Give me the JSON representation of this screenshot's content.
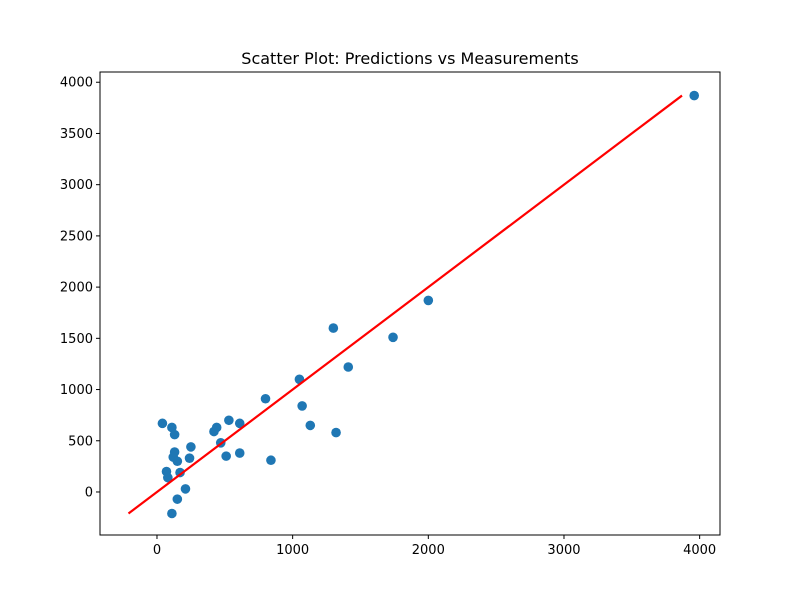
{
  "chart_data": {
    "type": "scatter",
    "title": "Scatter Plot: Predictions vs Measurements",
    "xlabel": "",
    "ylabel": "",
    "xlim": [
      -420,
      4150
    ],
    "ylim": [
      -420,
      4100
    ],
    "xticks": [
      0,
      1000,
      2000,
      3000,
      4000
    ],
    "yticks": [
      0,
      500,
      1000,
      1500,
      2000,
      2500,
      3000,
      3500,
      4000
    ],
    "grid": false,
    "legend": "none",
    "colors": {
      "points": "#1f77b4",
      "fit_line": "#ff0000"
    },
    "points": [
      {
        "x": 40,
        "y": 670
      },
      {
        "x": 70,
        "y": 200
      },
      {
        "x": 80,
        "y": 140
      },
      {
        "x": 110,
        "y": 630
      },
      {
        "x": 110,
        "y": -210
      },
      {
        "x": 120,
        "y": 340
      },
      {
        "x": 130,
        "y": 390
      },
      {
        "x": 130,
        "y": 560
      },
      {
        "x": 150,
        "y": 300
      },
      {
        "x": 150,
        "y": -70
      },
      {
        "x": 170,
        "y": 190
      },
      {
        "x": 210,
        "y": 30
      },
      {
        "x": 240,
        "y": 330
      },
      {
        "x": 250,
        "y": 440
      },
      {
        "x": 420,
        "y": 590
      },
      {
        "x": 440,
        "y": 630
      },
      {
        "x": 470,
        "y": 480
      },
      {
        "x": 510,
        "y": 350
      },
      {
        "x": 530,
        "y": 700
      },
      {
        "x": 610,
        "y": 380
      },
      {
        "x": 610,
        "y": 670
      },
      {
        "x": 800,
        "y": 910
      },
      {
        "x": 840,
        "y": 310
      },
      {
        "x": 1050,
        "y": 1100
      },
      {
        "x": 1070,
        "y": 840
      },
      {
        "x": 1130,
        "y": 650
      },
      {
        "x": 1300,
        "y": 1600
      },
      {
        "x": 1320,
        "y": 580
      },
      {
        "x": 1410,
        "y": 1220
      },
      {
        "x": 1740,
        "y": 1510
      },
      {
        "x": 2000,
        "y": 1870
      },
      {
        "x": 3960,
        "y": 3870
      }
    ],
    "fit_line": {
      "x1": -210,
      "y1": -210,
      "x2": 3870,
      "y2": 3870
    }
  }
}
